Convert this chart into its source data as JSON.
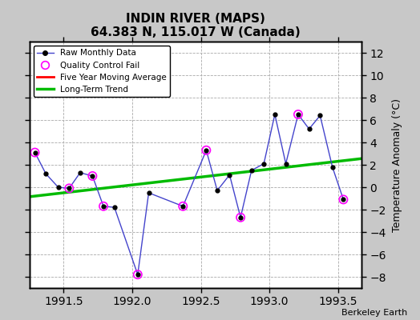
{
  "title": "INDIN RIVER (MAPS)",
  "subtitle": "64.383 N, 115.017 W (Canada)",
  "ylabel": "Temperature Anomaly (°C)",
  "attribution": "Berkeley Earth",
  "xlim": [
    1991.25,
    1993.67
  ],
  "ylim": [
    -9,
    13
  ],
  "yticks": [
    -8,
    -6,
    -4,
    -2,
    0,
    2,
    4,
    6,
    8,
    10,
    12
  ],
  "xticks": [
    1991.5,
    1992.0,
    1992.5,
    1993.0,
    1993.5
  ],
  "background_color": "#c8c8c8",
  "plot_bg_color": "#ffffff",
  "raw_x": [
    1991.29,
    1991.37,
    1991.46,
    1991.54,
    1991.62,
    1991.71,
    1991.79,
    1991.87,
    1992.04,
    1992.12,
    1992.37,
    1992.54,
    1992.62,
    1992.71,
    1992.79,
    1992.87,
    1992.96,
    1993.04,
    1993.12,
    1993.21,
    1993.29,
    1993.37,
    1993.46,
    1993.54
  ],
  "raw_y": [
    3.1,
    1.2,
    0.0,
    -0.1,
    1.3,
    1.0,
    -1.7,
    -1.8,
    -7.8,
    -0.5,
    -1.7,
    3.3,
    -0.3,
    1.1,
    -2.7,
    1.5,
    2.1,
    6.5,
    2.1,
    6.5,
    5.2,
    6.4,
    1.8,
    -1.1
  ],
  "qc_fail_x": [
    1991.29,
    1991.54,
    1991.71,
    1991.79,
    1992.04,
    1992.37,
    1992.54,
    1992.79,
    1993.21,
    1993.54
  ],
  "qc_fail_y": [
    3.1,
    -0.1,
    1.0,
    -1.7,
    -7.8,
    -1.7,
    3.3,
    -2.7,
    6.5,
    -1.1
  ],
  "trend_x": [
    1991.25,
    1993.67
  ],
  "trend_y": [
    -0.85,
    2.55
  ],
  "line_color": "#4444cc",
  "dot_color": "#000000",
  "qc_color": "#ff00ff",
  "trend_color": "#00bb00",
  "moving_avg_color": "#ff0000"
}
